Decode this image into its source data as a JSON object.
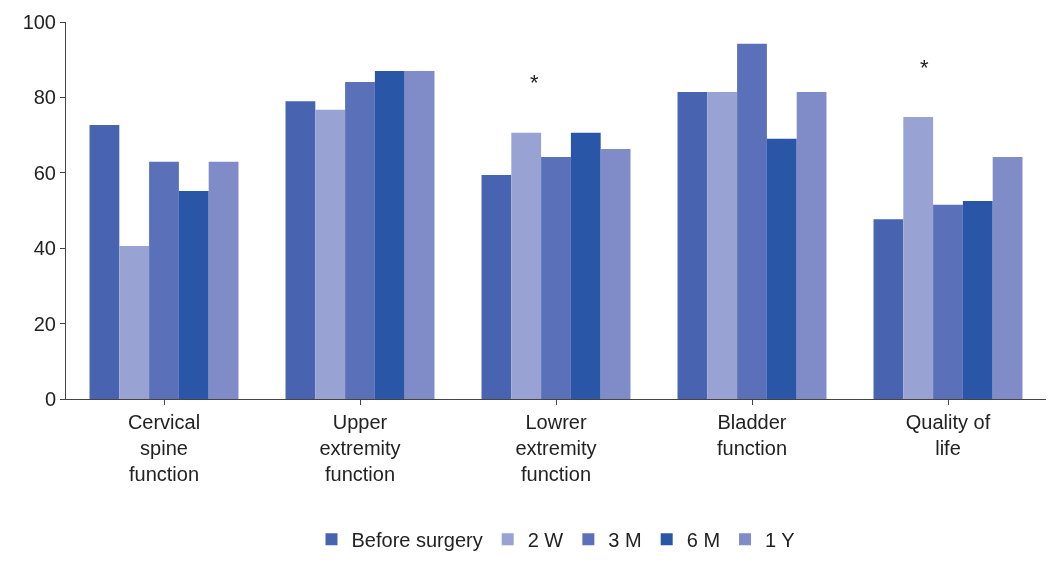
{
  "chart_data": {
    "type": "bar",
    "categories": [
      "Cervical\nspine\nfunction",
      "Upper\nextremity\nfunction",
      "Lowrer\nextremity\nfunction",
      "Bladder\nfunction",
      "Quality of\nlife"
    ],
    "series": [
      {
        "name": "Before surgery",
        "color": "#4863b0",
        "values": [
          72.7,
          79.0,
          59.4,
          81.4,
          47.7
        ]
      },
      {
        "name": "2 W",
        "color": "#98a2d3",
        "values": [
          40.6,
          76.7,
          70.6,
          81.4,
          74.8
        ]
      },
      {
        "name": "3 M",
        "color": "#5a71b9",
        "values": [
          62.9,
          84.1,
          64.2,
          94.2,
          51.5
        ]
      },
      {
        "name": "6 M",
        "color": "#2a56a7",
        "values": [
          55.2,
          87.0,
          70.6,
          69.0,
          52.5
        ]
      },
      {
        "name": "1 Y",
        "color": "#7f8cc8",
        "values": [
          62.9,
          87.0,
          66.3,
          81.4,
          64.2
        ]
      }
    ],
    "ylim": [
      0,
      100
    ],
    "yticks": [
      0,
      20,
      40,
      60,
      80,
      100
    ],
    "legend": "bottom",
    "annotations": [
      "*",
      "*"
    ]
  }
}
